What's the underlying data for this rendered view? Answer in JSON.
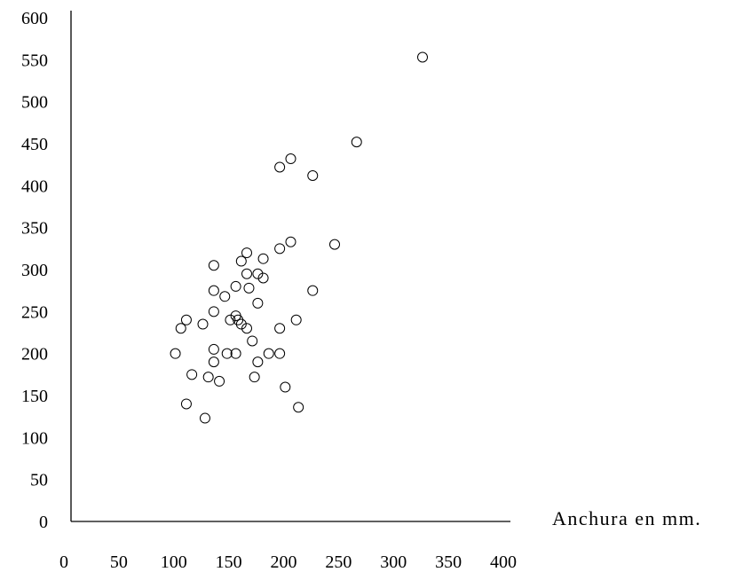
{
  "chart_data": {
    "type": "scatter",
    "title": "",
    "xlabel": "Anchura en mm.",
    "ylabel": "",
    "xlim": [
      0,
      400
    ],
    "ylim": [
      0,
      600
    ],
    "xticks": [
      "0",
      "50",
      "100",
      "150",
      "200",
      "250",
      "300",
      "350",
      "400"
    ],
    "yticks": [
      "0",
      "50",
      "100",
      "150",
      "200",
      "250",
      "300",
      "350",
      "400",
      "450",
      "500",
      "550",
      "600"
    ],
    "grid": false,
    "marker": "open-circle",
    "series": [
      {
        "points": [
          [
            95,
            200
          ],
          [
            100,
            230
          ],
          [
            105,
            240
          ],
          [
            105,
            140
          ],
          [
            110,
            175
          ],
          [
            120,
            235
          ],
          [
            122,
            123
          ],
          [
            125,
            172
          ],
          [
            130,
            275
          ],
          [
            130,
            250
          ],
          [
            130,
            205
          ],
          [
            130,
            190
          ],
          [
            130,
            305
          ],
          [
            135,
            167
          ],
          [
            140,
            268
          ],
          [
            142,
            200
          ],
          [
            145,
            240
          ],
          [
            150,
            280
          ],
          [
            150,
            245
          ],
          [
            150,
            200
          ],
          [
            152,
            240
          ],
          [
            155,
            310
          ],
          [
            155,
            235
          ],
          [
            160,
            295
          ],
          [
            160,
            320
          ],
          [
            160,
            230
          ],
          [
            162,
            278
          ],
          [
            165,
            215
          ],
          [
            167,
            172
          ],
          [
            170,
            295
          ],
          [
            170,
            260
          ],
          [
            170,
            190
          ],
          [
            175,
            313
          ],
          [
            175,
            290
          ],
          [
            180,
            200
          ],
          [
            190,
            422
          ],
          [
            190,
            325
          ],
          [
            190,
            230
          ],
          [
            190,
            200
          ],
          [
            195,
            160
          ],
          [
            200,
            432
          ],
          [
            200,
            333
          ],
          [
            205,
            240
          ],
          [
            207,
            136
          ],
          [
            220,
            412
          ],
          [
            220,
            275
          ],
          [
            240,
            330
          ],
          [
            260,
            452
          ],
          [
            320,
            553
          ]
        ]
      }
    ]
  }
}
